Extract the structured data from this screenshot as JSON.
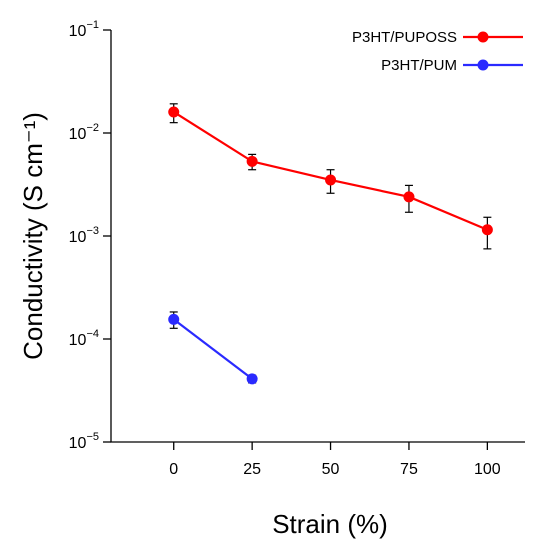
{
  "chart_data": {
    "type": "line",
    "xlabel": "Strain (%)",
    "ylabel": "Conductivity (S cm⁻¹)",
    "x_ticks": [
      0,
      25,
      50,
      75,
      100
    ],
    "x_tick_labels": [
      "0",
      "25",
      "50",
      "75",
      "100"
    ],
    "xlim": [
      -20,
      112
    ],
    "y_scale": "log",
    "ylim": [
      1e-05,
      0.1
    ],
    "y_ticks": [
      1e-05,
      0.0001,
      0.001,
      0.01,
      0.1
    ],
    "y_tick_labels": [
      {
        "base": "10",
        "exp": "−5"
      },
      {
        "base": "10",
        "exp": "−4"
      },
      {
        "base": "10",
        "exp": "−3"
      },
      {
        "base": "10",
        "exp": "−2"
      },
      {
        "base": "10",
        "exp": "−1"
      }
    ],
    "grid": false,
    "legend_position": "top-right",
    "series": [
      {
        "name": "P3HT/PUPOSS",
        "color": "#ff0000",
        "x": [
          0,
          25,
          50,
          75,
          100
        ],
        "y": [
          0.016,
          0.0053,
          0.0035,
          0.0024,
          0.00115
        ],
        "error_low": [
          0.0126,
          0.0044,
          0.0026,
          0.0017,
          0.00075
        ],
        "error_high": [
          0.0192,
          0.0062,
          0.0044,
          0.0031,
          0.00152
        ]
      },
      {
        "name": "P3HT/PUM",
        "color": "#2a2aff",
        "x": [
          0,
          25
        ],
        "y": [
          0.000155,
          4.1e-05
        ],
        "error_low": [
          0.000127,
          3.75e-05
        ],
        "error_high": [
          0.000183,
          4.45e-05
        ]
      }
    ]
  }
}
